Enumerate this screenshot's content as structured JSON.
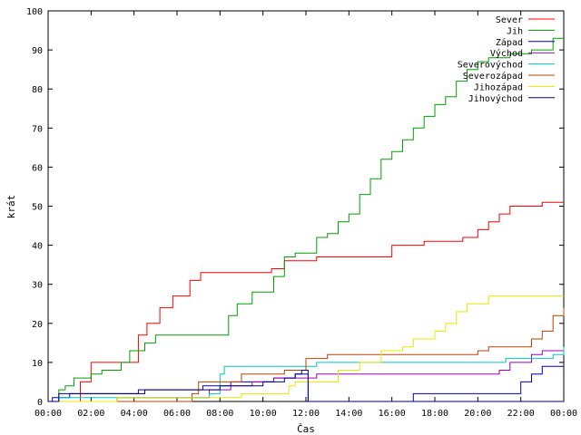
{
  "chart_data": {
    "type": "line",
    "xlabel": "Čas",
    "ylabel": "krát",
    "xlim": [
      0,
      24
    ],
    "ylim": [
      0,
      100
    ],
    "x_ticks": [
      {
        "x": 0,
        "label": "00:00"
      },
      {
        "x": 2,
        "label": "02:00"
      },
      {
        "x": 4,
        "label": "04:00"
      },
      {
        "x": 6,
        "label": "06:00"
      },
      {
        "x": 8,
        "label": "08:00"
      },
      {
        "x": 10,
        "label": "10:00"
      },
      {
        "x": 12,
        "label": "12:00"
      },
      {
        "x": 14,
        "label": "14:00"
      },
      {
        "x": 16,
        "label": "16:00"
      },
      {
        "x": 18,
        "label": "18:00"
      },
      {
        "x": 20,
        "label": "20:00"
      },
      {
        "x": 22,
        "label": "22:00"
      },
      {
        "x": 24,
        "label": "00:00"
      }
    ],
    "y_ticks": [
      {
        "y": 0,
        "label": "0"
      },
      {
        "y": 10,
        "label": "10"
      },
      {
        "y": 20,
        "label": "20"
      },
      {
        "y": 30,
        "label": "30"
      },
      {
        "y": 40,
        "label": "40"
      },
      {
        "y": 50,
        "label": "50"
      },
      {
        "y": 60,
        "label": "60"
      },
      {
        "y": 70,
        "label": "70"
      },
      {
        "y": 80,
        "label": "80"
      },
      {
        "y": 90,
        "label": "90"
      },
      {
        "y": 100,
        "label": "100"
      }
    ],
    "legend_position": "top-right",
    "grid": false,
    "step": true,
    "series": [
      {
        "name": "Sever",
        "color": "#ff0000",
        "points": [
          [
            0,
            0
          ],
          [
            1.0,
            0
          ],
          [
            1.5,
            5
          ],
          [
            2.0,
            10
          ],
          [
            3.5,
            10
          ],
          [
            4.2,
            17
          ],
          [
            4.6,
            20
          ],
          [
            5.2,
            24
          ],
          [
            5.8,
            27
          ],
          [
            6.6,
            31
          ],
          [
            7.1,
            33
          ],
          [
            9.8,
            33
          ],
          [
            10.4,
            34
          ],
          [
            11.0,
            36
          ],
          [
            12.0,
            36
          ],
          [
            12.5,
            37
          ],
          [
            14.5,
            37
          ],
          [
            16.0,
            40
          ],
          [
            17.0,
            40
          ],
          [
            17.5,
            41
          ],
          [
            18.5,
            41
          ],
          [
            19.3,
            42
          ],
          [
            20.0,
            44
          ],
          [
            20.5,
            46
          ],
          [
            21.0,
            48
          ],
          [
            21.5,
            50
          ],
          [
            22.8,
            50
          ],
          [
            23.0,
            51
          ],
          [
            24,
            51
          ]
        ]
      },
      {
        "name": "Jih",
        "color": "#00a000",
        "points": [
          [
            0,
            0
          ],
          [
            0.5,
            3
          ],
          [
            0.8,
            4
          ],
          [
            1.2,
            6
          ],
          [
            2.0,
            7
          ],
          [
            2.5,
            8
          ],
          [
            3.4,
            10
          ],
          [
            3.8,
            13
          ],
          [
            4.5,
            15
          ],
          [
            5.0,
            17
          ],
          [
            5.5,
            17
          ],
          [
            8.0,
            17
          ],
          [
            8.4,
            22
          ],
          [
            8.8,
            25
          ],
          [
            9.5,
            28
          ],
          [
            10.5,
            32
          ],
          [
            11.0,
            37
          ],
          [
            11.5,
            38
          ],
          [
            12.5,
            42
          ],
          [
            13.0,
            43
          ],
          [
            13.5,
            46
          ],
          [
            14.0,
            48
          ],
          [
            14.5,
            53
          ],
          [
            15.0,
            57
          ],
          [
            15.5,
            62
          ],
          [
            16.0,
            64
          ],
          [
            16.5,
            67
          ],
          [
            17.0,
            70
          ],
          [
            17.5,
            73
          ],
          [
            18.0,
            76
          ],
          [
            18.5,
            78
          ],
          [
            19.0,
            82
          ],
          [
            19.5,
            85
          ],
          [
            20.0,
            87
          ],
          [
            20.5,
            88
          ],
          [
            21.5,
            89
          ],
          [
            22.5,
            90
          ],
          [
            23.5,
            93
          ],
          [
            24,
            93
          ]
        ]
      },
      {
        "name": "Západ",
        "color": "#0000c0",
        "points": [
          [
            0,
            0
          ],
          [
            0.2,
            1
          ],
          [
            1.0,
            2
          ],
          [
            4.0,
            2
          ],
          [
            4.2,
            3
          ],
          [
            7.0,
            3
          ],
          [
            7.2,
            4
          ],
          [
            8.5,
            5
          ],
          [
            10.0,
            5
          ],
          [
            10.5,
            6
          ],
          [
            11.5,
            7
          ],
          [
            12.0,
            7
          ],
          [
            12.1,
            0
          ],
          [
            16.5,
            0
          ],
          [
            17.0,
            2
          ],
          [
            21.5,
            2
          ],
          [
            22.0,
            5
          ],
          [
            22.5,
            7
          ],
          [
            23.0,
            9
          ],
          [
            24,
            9
          ]
        ]
      },
      {
        "name": "Východ",
        "color": "#a000c0",
        "points": [
          [
            0,
            0
          ],
          [
            3.0,
            0
          ],
          [
            3.2,
            1
          ],
          [
            7.0,
            1
          ],
          [
            7.5,
            3
          ],
          [
            8.5,
            4
          ],
          [
            9.5,
            5
          ],
          [
            10.5,
            6
          ],
          [
            11.0,
            6
          ],
          [
            12.5,
            7
          ],
          [
            20.5,
            7
          ],
          [
            21.0,
            8
          ],
          [
            21.5,
            10
          ],
          [
            22.5,
            12
          ],
          [
            23.0,
            13
          ],
          [
            24,
            13
          ]
        ]
      },
      {
        "name": "Severovýchod",
        "color": "#00c8c8",
        "points": [
          [
            0,
            0
          ],
          [
            0.5,
            1
          ],
          [
            3.5,
            1
          ],
          [
            5.0,
            1
          ],
          [
            7.5,
            2
          ],
          [
            8.0,
            7
          ],
          [
            8.2,
            9
          ],
          [
            12.0,
            9
          ],
          [
            12.5,
            10
          ],
          [
            21.0,
            10
          ],
          [
            21.3,
            11
          ],
          [
            22.5,
            11
          ],
          [
            23.5,
            12
          ],
          [
            24,
            14
          ]
        ]
      },
      {
        "name": "Severozápad",
        "color": "#c04000",
        "points": [
          [
            0,
            0
          ],
          [
            6.5,
            0
          ],
          [
            6.7,
            2
          ],
          [
            7.0,
            5
          ],
          [
            8.0,
            5
          ],
          [
            9.0,
            7
          ],
          [
            10.0,
            7
          ],
          [
            11.0,
            8
          ],
          [
            12.0,
            11
          ],
          [
            13.0,
            12
          ],
          [
            19.5,
            12
          ],
          [
            20.0,
            13
          ],
          [
            20.5,
            14
          ],
          [
            22.0,
            14
          ],
          [
            22.5,
            16
          ],
          [
            23.0,
            18
          ],
          [
            23.5,
            22
          ],
          [
            24,
            24
          ]
        ]
      },
      {
        "name": "Jihozápad",
        "color": "#e8e800",
        "points": [
          [
            0,
            0
          ],
          [
            3.0,
            0
          ],
          [
            3.2,
            1
          ],
          [
            8.5,
            1
          ],
          [
            9.0,
            2
          ],
          [
            11.0,
            2
          ],
          [
            11.2,
            4
          ],
          [
            11.5,
            5
          ],
          [
            12.0,
            5
          ],
          [
            13.5,
            8
          ],
          [
            14.5,
            10
          ],
          [
            15.5,
            13
          ],
          [
            16.5,
            14
          ],
          [
            17.0,
            16
          ],
          [
            18.0,
            18
          ],
          [
            18.5,
            20
          ],
          [
            19.0,
            23
          ],
          [
            19.5,
            25
          ],
          [
            20.5,
            27
          ],
          [
            24,
            27
          ]
        ]
      },
      {
        "name": "Jihovýchod",
        "color": "#000080",
        "points": [
          [
            0,
            0
          ],
          [
            0.5,
            2
          ],
          [
            3.5,
            2
          ],
          [
            4.5,
            3
          ],
          [
            7.0,
            3
          ],
          [
            8.0,
            4
          ],
          [
            9.5,
            4
          ],
          [
            10.0,
            5
          ],
          [
            11.0,
            6
          ],
          [
            11.5,
            7
          ],
          [
            11.8,
            8
          ],
          [
            12.0,
            8
          ],
          [
            12.1,
            0
          ],
          [
            24,
            0
          ]
        ]
      }
    ]
  }
}
